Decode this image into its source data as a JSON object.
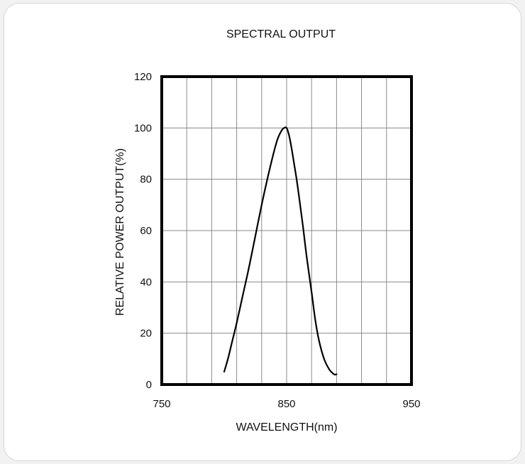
{
  "chart_data": {
    "type": "line",
    "title": "SPECTRAL OUTPUT",
    "xlabel": "WAVELENGTH(nm)",
    "ylabel": "RELATIVE POWER OUTPUT(%)",
    "xlim": [
      750,
      950
    ],
    "ylim": [
      0,
      120
    ],
    "xticks": [
      750,
      850,
      950
    ],
    "yticks": [
      0,
      20,
      40,
      60,
      80,
      100,
      120
    ],
    "x_minor_step": 20,
    "y_minor_step": 20,
    "grid": true,
    "series": [
      {
        "x": [
          800,
          803,
          806,
          810,
          815,
          820,
          825,
          830,
          835,
          840,
          843,
          846,
          848,
          850,
          852,
          854,
          856,
          858,
          860,
          863,
          866,
          870,
          873,
          876,
          880,
          884,
          888,
          890
        ],
        "y": [
          5,
          10,
          16,
          24,
          35,
          46,
          58,
          70,
          81,
          91,
          96,
          99,
          100,
          100,
          97,
          92,
          86,
          80,
          73,
          62,
          50,
          36,
          25,
          17,
          10,
          6,
          4,
          4
        ]
      }
    ],
    "line_color": "#000000"
  }
}
